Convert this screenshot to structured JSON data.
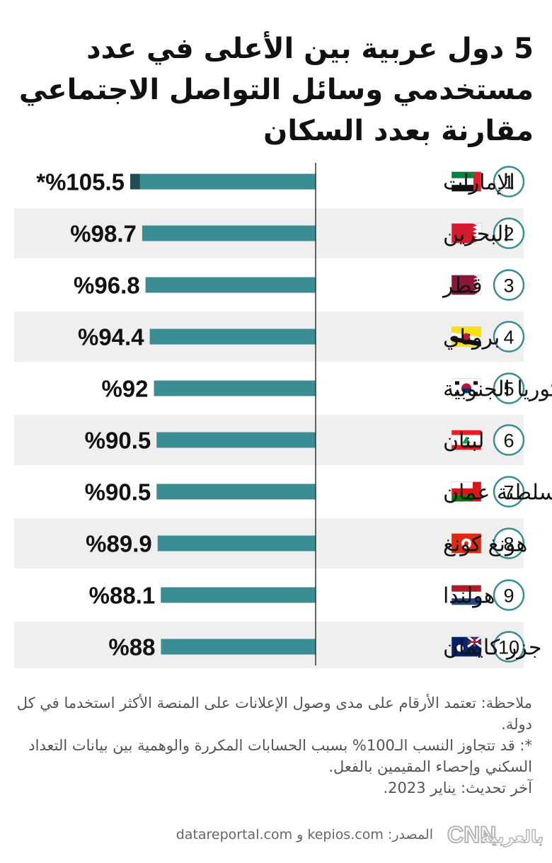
{
  "title": "5 دول عربية بين الأعلى في عدد مستخدمي وسائل التواصل الاجتماعي مقارنة بعدد السكان",
  "chart_data": {
    "type": "bar",
    "orientation": "horizontal",
    "title": "5 دول عربية بين الأعلى في عدد مستخدمي وسائل التواصل الاجتماعي مقارنة بعدد السكان",
    "ranks": [
      "1",
      "2",
      "3",
      "4",
      "5",
      "6",
      "7",
      "8",
      "9",
      "10"
    ],
    "categories": [
      "الإمارات",
      "البحرين",
      "قطر",
      "بروناي",
      "كوريا الجنوبية",
      "لبنان",
      "سلطنة عمان",
      "هونغ كونغ",
      "هولندا",
      "جزر كايمان"
    ],
    "values": [
      105.5,
      98.7,
      96.8,
      94.4,
      92,
      90.5,
      90.5,
      89.9,
      88.1,
      88
    ],
    "value_labels": [
      "*%105.5",
      "%98.7",
      "%96.8",
      "%94.4",
      "%92",
      "%90.5",
      "%90.5",
      "%89.9",
      "%88.1",
      "%88"
    ],
    "flags": [
      "uae-flag",
      "bahrain-flag",
      "qatar-flag",
      "brunei-flag",
      "south-korea-flag",
      "lebanon-flag",
      "oman-flag",
      "hong-kong-flag",
      "netherlands-flag",
      "cayman-islands-flag"
    ],
    "xlim": [
      0,
      110
    ],
    "bar_color": "#3a8e93",
    "overflow_color": "#1f4f55",
    "grid": false
  },
  "note": {
    "line1": "ملاحظة: تعتمد الأرقام على مدى وصول الإعلانات على المنصة الأكثر استخدما في كل دولة.",
    "line2": "*: قد تتجاوز النسب الـ100% بسبب الحسابات المكررة والوهمية بين بيانات التعداد السكني وإحصاء المقيمين بالفعل.",
    "line3": "آخر تحديث: يناير 2023."
  },
  "footer": {
    "source": "المصدر: kepios.com و datareportal.com",
    "logo_text": "بالعربية",
    "cnn_text": "CNN"
  }
}
